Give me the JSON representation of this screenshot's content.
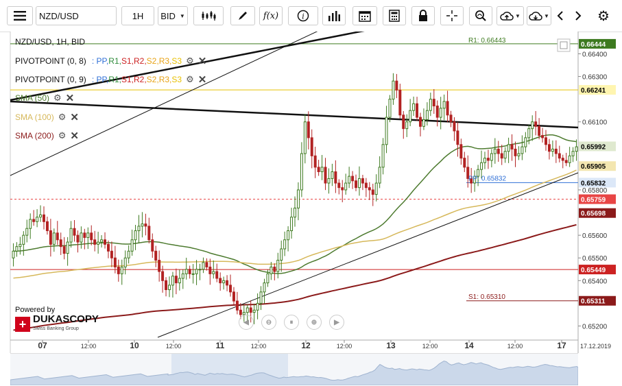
{
  "toolbar": {
    "symbol": "NZD/USD",
    "timeframe": "1H",
    "price_type": "BID"
  },
  "chart_data": {
    "type": "candlestick",
    "title": "NZD/USD, 1H, BID",
    "ylim": [
      0.6515,
      0.6648
    ],
    "y_ticks": [
      "0.66400",
      "0.66300",
      "0.66100",
      "0.65800",
      "0.65600",
      "0.65500",
      "0.65400",
      "0.65200"
    ],
    "x_ticks": [
      "07",
      "12:00",
      "10",
      "12:00",
      "11",
      "12:00",
      "12",
      "12:00",
      "13",
      "12:00",
      "14",
      "12:00",
      "17"
    ],
    "x_tick_bold": [
      true,
      false,
      true,
      false,
      true,
      false,
      true,
      false,
      true,
      false,
      true,
      false,
      true
    ],
    "date_label": "17.12.2019",
    "closes": [
      0.6553,
      0.6555,
      0.6556,
      0.656,
      0.6563,
      0.6567,
      0.6566,
      0.6568,
      0.6569,
      0.6566,
      0.6562,
      0.6556,
      0.6561,
      0.6558,
      0.6555,
      0.6552,
      0.6557,
      0.6563,
      0.656,
      0.6557,
      0.6561,
      0.6559,
      0.6561,
      0.6558,
      0.6556,
      0.6557,
      0.6558,
      0.6556,
      0.6553,
      0.655,
      0.6546,
      0.6543,
      0.6546,
      0.655,
      0.6553,
      0.6558,
      0.6562,
      0.6564,
      0.6565,
      0.6564,
      0.6558,
      0.6553,
      0.6549,
      0.6544,
      0.654,
      0.6536,
      0.6538,
      0.6542,
      0.6539,
      0.6541,
      0.6543,
      0.6545,
      0.6543,
      0.6543,
      0.6545,
      0.6545,
      0.6548,
      0.6546,
      0.6543,
      0.6544,
      0.6541,
      0.6539,
      0.654,
      0.6538,
      0.6535,
      0.6531,
      0.6527,
      0.6525,
      0.6526,
      0.6528,
      0.6526,
      0.6527,
      0.653,
      0.6535,
      0.6539,
      0.6543,
      0.6546,
      0.6544,
      0.6549,
      0.6554,
      0.6558,
      0.6562,
      0.6568,
      0.6572,
      0.658,
      0.6596,
      0.661,
      0.6603,
      0.6595,
      0.659,
      0.6588,
      0.659,
      0.6583,
      0.6585,
      0.6588,
      0.6583,
      0.6581,
      0.658,
      0.6583,
      0.6586,
      0.6584,
      0.6581,
      0.6585,
      0.6583,
      0.6581,
      0.658,
      0.6578,
      0.6583,
      0.659,
      0.66,
      0.6612,
      0.662,
      0.6628,
      0.6624,
      0.6613,
      0.6607,
      0.661,
      0.6615,
      0.6618,
      0.6612,
      0.6608,
      0.6611,
      0.6615,
      0.662,
      0.6617,
      0.6612,
      0.6616,
      0.6619,
      0.6613,
      0.661,
      0.6606,
      0.66,
      0.6594,
      0.659,
      0.6585,
      0.6583,
      0.6586,
      0.6589,
      0.6592,
      0.6594,
      0.6593,
      0.6596,
      0.6598,
      0.6596,
      0.6594,
      0.6597,
      0.66,
      0.6598,
      0.6595,
      0.6596,
      0.6599,
      0.6603,
      0.6607,
      0.661,
      0.6608,
      0.6604,
      0.6603,
      0.66,
      0.6597,
      0.6598,
      0.6596,
      0.6594,
      0.6593,
      0.6592,
      0.6595,
      0.6597,
      0.6599
    ],
    "series": [
      {
        "name": "SMA (50)",
        "color": "#4c7a2e"
      },
      {
        "name": "SMA (100)",
        "color": "#d6b85a"
      },
      {
        "name": "SMA (200)",
        "color": "#8b1a1a"
      }
    ],
    "price_labels": [
      {
        "value": "0.66444",
        "bg": "#3d7a1f",
        "fg": "#ffffff"
      },
      {
        "value": "0.66241",
        "bg": "#fff5b0",
        "fg": "#000000"
      },
      {
        "value": "0.65992",
        "bg": "#dfe9cf",
        "fg": "#000000"
      },
      {
        "value": "0.65905",
        "bg": "#f3e6b0",
        "fg": "#000000"
      },
      {
        "value": "0.65832",
        "bg": "#dce8f8",
        "fg": "#000000"
      },
      {
        "value": "0.65759",
        "bg": "#e84545",
        "fg": "#ffffff"
      },
      {
        "value": "0.65698",
        "bg": "#8b1a1a",
        "fg": "#ffffff"
      },
      {
        "value": "0.65449",
        "bg": "#cc2222",
        "fg": "#ffffff"
      },
      {
        "value": "0.65311",
        "bg": "#8b1a1a",
        "fg": "#ffffff"
      }
    ],
    "annotations": {
      "pp": "PP: 0.65832",
      "s1": "S1: 0.65310",
      "r1": "R1: 0.66443"
    }
  },
  "legend": {
    "row1": {
      "name": "PIVOTPOINT (0, 8)",
      "items": [
        ": PP,",
        " R1,",
        " S1,",
        " R2,",
        " S2,",
        " R3,",
        " S3"
      ]
    },
    "row2": {
      "name": "PIVOTPOINT (0, 9)",
      "items": [
        ": PP,",
        " R1,",
        " S1,",
        " R2,",
        " S2,",
        " R3,",
        " S3"
      ]
    },
    "sma50": "SMA (50)",
    "sma100": "SMA (100)",
    "sma200": "SMA (200)",
    "colors": {
      "pp": "#2f6fd6",
      "r1": "#2e8b3a",
      "s1": "#cc2222",
      "r2": "#cc2222",
      "s2": "#e8a317",
      "r3": "#e8a317",
      "s3": "#e8c000"
    }
  },
  "branding": {
    "powered": "Powered by",
    "name": "DUKASCOPY",
    "tagline": "Swiss Banking Group"
  }
}
